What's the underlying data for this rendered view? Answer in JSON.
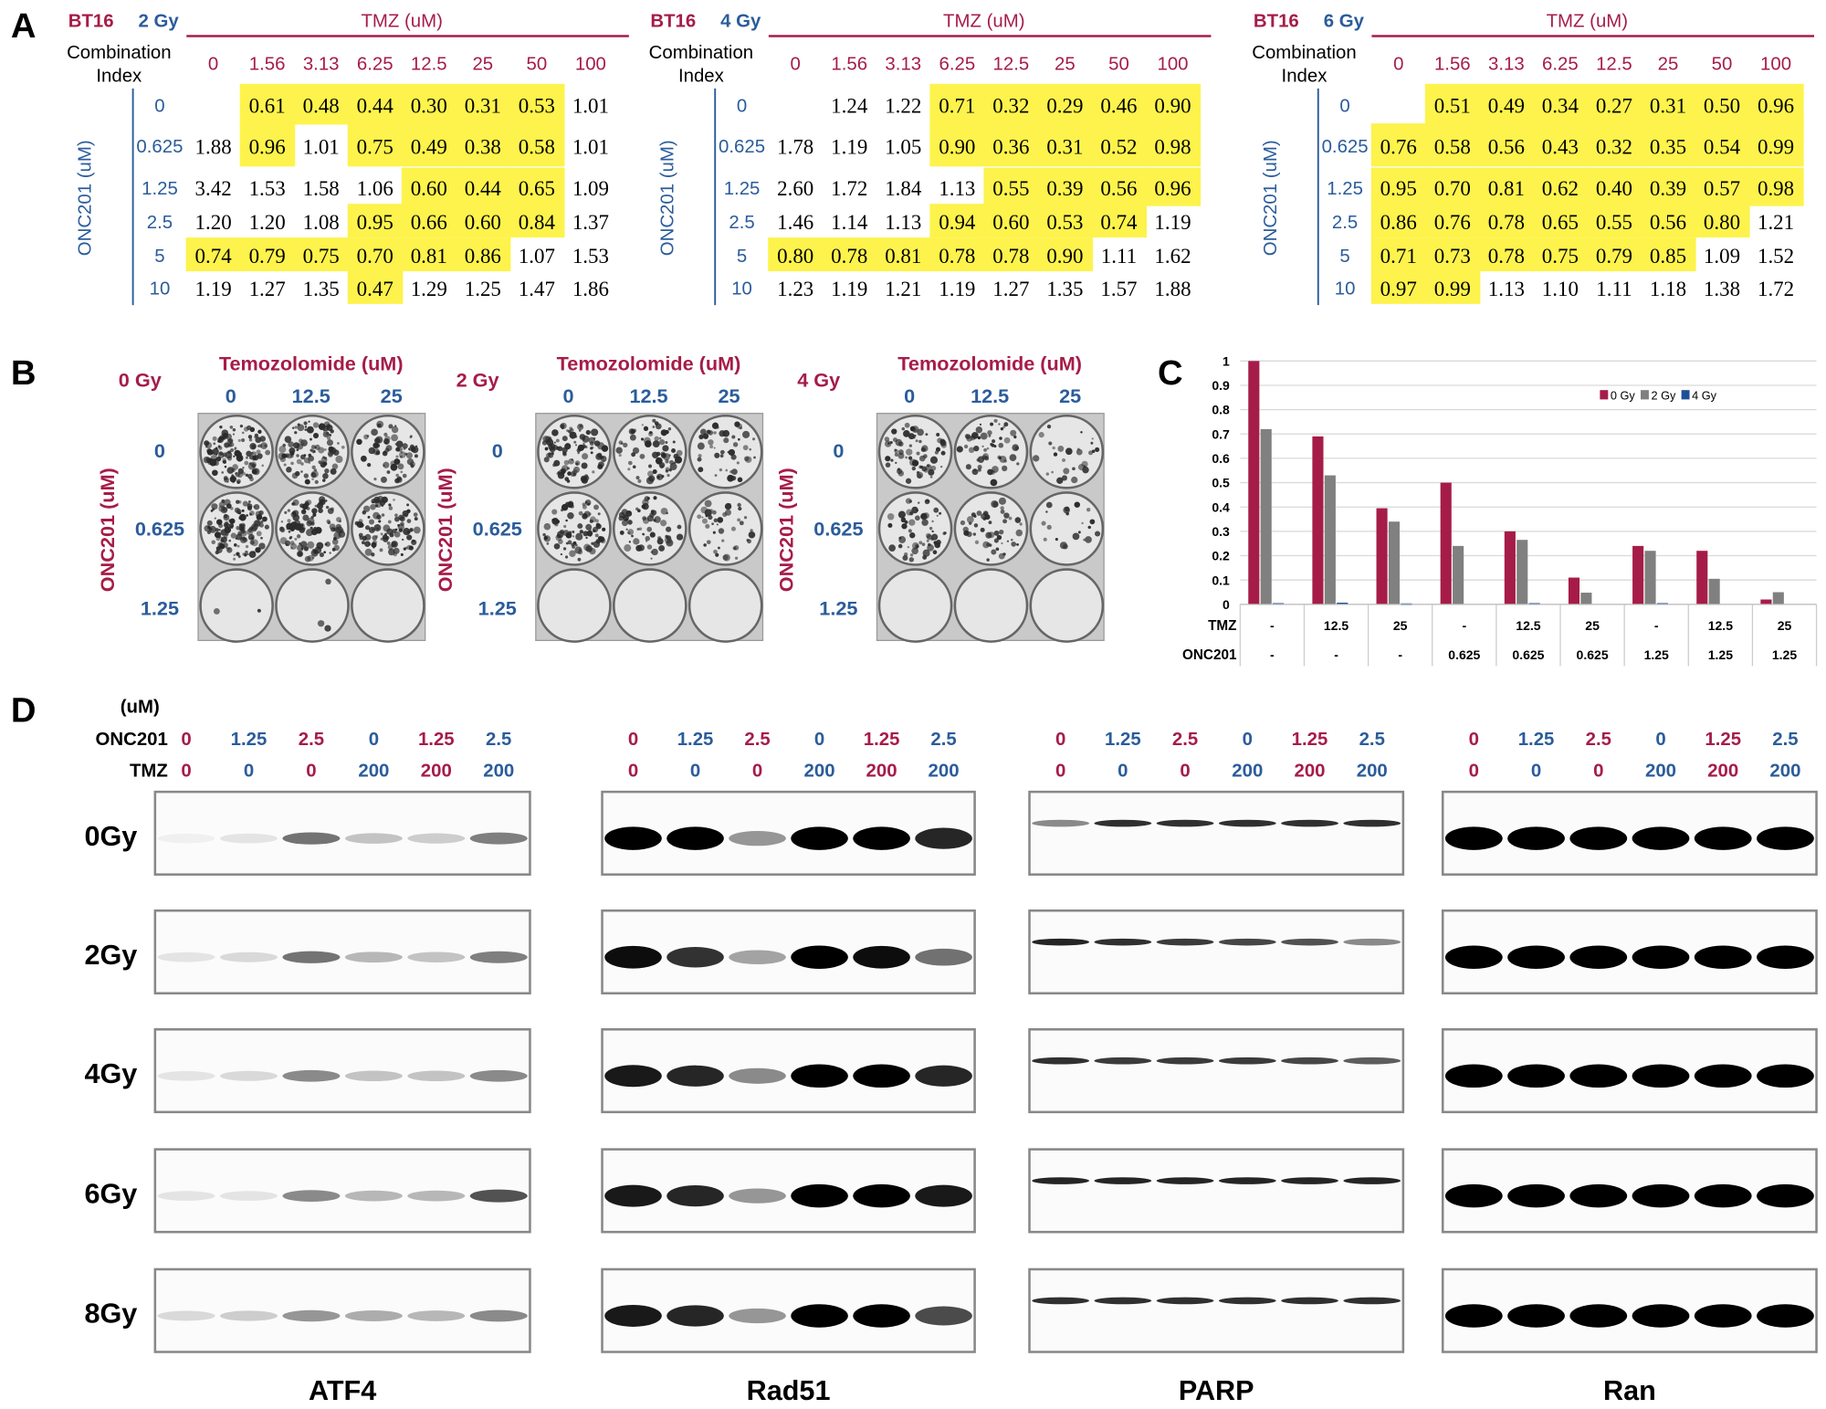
{
  "colors": {
    "crimson": "#a61c48",
    "blue": "#2b5c9b",
    "highlight": "#fdf34c",
    "gray": "#808080",
    "navy": "#1f4e99"
  },
  "panel_a": {
    "letter": "A",
    "tmz_label": "TMZ (uM)",
    "ci_label_1": "Combination",
    "ci_label_2": "Index",
    "onc_label": "ONC201 (uM)",
    "columns": [
      "0",
      "1.56",
      "3.13",
      "6.25",
      "12.5",
      "25",
      "50",
      "100"
    ],
    "row_labels": [
      "0",
      "0.625",
      "1.25",
      "2.5",
      "5",
      "10"
    ],
    "tables": [
      {
        "cell": "BT16",
        "dose": "2 Gy",
        "values": [
          [
            "",
            "0.61",
            "0.48",
            "0.44",
            "0.30",
            "0.31",
            "0.53",
            "1.01"
          ],
          [
            "1.88",
            "0.96",
            "1.01",
            "0.75",
            "0.49",
            "0.38",
            "0.58",
            "1.01"
          ],
          [
            "3.42",
            "1.53",
            "1.58",
            "1.06",
            "0.60",
            "0.44",
            "0.65",
            "1.09"
          ],
          [
            "1.20",
            "1.20",
            "1.08",
            "0.95",
            "0.66",
            "0.60",
            "0.84",
            "1.37"
          ],
          [
            "0.74",
            "0.79",
            "0.75",
            "0.70",
            "0.81",
            "0.86",
            "1.07",
            "1.53"
          ],
          [
            "1.19",
            "1.27",
            "1.35",
            "0.47",
            "1.29",
            "1.25",
            "1.47",
            "1.86"
          ]
        ],
        "highlighted": [
          [
            1,
            2,
            3,
            4,
            5,
            6
          ],
          [
            1,
            3,
            4,
            5,
            6
          ],
          [
            4,
            5,
            6
          ],
          [
            3,
            4,
            5,
            6
          ],
          [
            0,
            1,
            2,
            3,
            4,
            5
          ],
          [
            3
          ]
        ]
      },
      {
        "cell": "BT16",
        "dose": "4 Gy",
        "values": [
          [
            "",
            "1.24",
            "1.22",
            "0.71",
            "0.32",
            "0.29",
            "0.46",
            "0.90"
          ],
          [
            "1.78",
            "1.19",
            "1.05",
            "0.90",
            "0.36",
            "0.31",
            "0.52",
            "0.98"
          ],
          [
            "2.60",
            "1.72",
            "1.84",
            "1.13",
            "0.55",
            "0.39",
            "0.56",
            "0.96"
          ],
          [
            "1.46",
            "1.14",
            "1.13",
            "0.94",
            "0.60",
            "0.53",
            "0.74",
            "1.19"
          ],
          [
            "0.80",
            "0.78",
            "0.81",
            "0.78",
            "0.78",
            "0.90",
            "1.11",
            "1.62"
          ],
          [
            "1.23",
            "1.19",
            "1.21",
            "1.19",
            "1.27",
            "1.35",
            "1.57",
            "1.88"
          ]
        ],
        "highlighted": [
          [
            3,
            4,
            5,
            6,
            7
          ],
          [
            3,
            4,
            5,
            6,
            7
          ],
          [
            4,
            5,
            6,
            7
          ],
          [
            3,
            4,
            5,
            6
          ],
          [
            0,
            1,
            2,
            3,
            4,
            5
          ],
          []
        ]
      },
      {
        "cell": "BT16",
        "dose": "6 Gy",
        "values": [
          [
            "",
            "0.51",
            "0.49",
            "0.34",
            "0.27",
            "0.31",
            "0.50",
            "0.96"
          ],
          [
            "0.76",
            "0.58",
            "0.56",
            "0.43",
            "0.32",
            "0.35",
            "0.54",
            "0.99"
          ],
          [
            "0.95",
            "0.70",
            "0.81",
            "0.62",
            "0.40",
            "0.39",
            "0.57",
            "0.98"
          ],
          [
            "0.86",
            "0.76",
            "0.78",
            "0.65",
            "0.55",
            "0.56",
            "0.80",
            "1.21"
          ],
          [
            "0.71",
            "0.73",
            "0.78",
            "0.75",
            "0.79",
            "0.85",
            "1.09",
            "1.52"
          ],
          [
            "0.97",
            "0.99",
            "1.13",
            "1.10",
            "1.11",
            "1.18",
            "1.38",
            "1.72"
          ]
        ],
        "highlighted": [
          [
            1,
            2,
            3,
            4,
            5,
            6,
            7
          ],
          [
            0,
            1,
            2,
            3,
            4,
            5,
            6,
            7
          ],
          [
            0,
            1,
            2,
            3,
            4,
            5,
            6,
            7
          ],
          [
            0,
            1,
            2,
            3,
            4,
            5,
            6
          ],
          [
            0,
            1,
            2,
            3,
            4,
            5
          ],
          [
            0,
            1
          ]
        ]
      }
    ]
  },
  "panel_b": {
    "letter": "B",
    "tmz_label": "Temozolomide (uM)",
    "onc_label": "ONC201 (uM)",
    "columns": [
      "0",
      "12.5",
      "25"
    ],
    "rows": [
      "0",
      "0.625",
      "1.25"
    ],
    "plates": [
      {
        "dose": "0 Gy",
        "colony_density": [
          [
            0.9,
            0.7,
            0.5
          ],
          [
            0.9,
            0.8,
            0.7
          ],
          [
            0.02,
            0.02,
            0
          ]
        ]
      },
      {
        "dose": "2 Gy",
        "colony_density": [
          [
            0.7,
            0.5,
            0.35
          ],
          [
            0.6,
            0.45,
            0.3
          ],
          [
            0,
            0,
            0
          ]
        ]
      },
      {
        "dose": "4 Gy",
        "colony_density": [
          [
            0.5,
            0.4,
            0.2
          ],
          [
            0.45,
            0.35,
            0.15
          ],
          [
            0,
            0,
            0
          ]
        ]
      }
    ]
  },
  "chart_data": {
    "type": "bar",
    "letter": "C",
    "ylim": [
      0,
      1
    ],
    "yticks": [
      "0",
      "0.1",
      "0.2",
      "0.3",
      "0.4",
      "0.5",
      "0.6",
      "0.7",
      "0.8",
      "0.9",
      "1"
    ],
    "grid": true,
    "legend_placement": "top-right",
    "row_label_tmz": "TMZ",
    "row_label_onc": "ONC201",
    "tmz": [
      "-",
      "12.5",
      "25",
      "-",
      "12.5",
      "25",
      "-",
      "12.5",
      "25"
    ],
    "onc201": [
      "-",
      "-",
      "-",
      "0.625",
      "0.625",
      "0.625",
      "1.25",
      "1.25",
      "1.25"
    ],
    "series": [
      {
        "name": "0 Gy",
        "color": "#a61c48",
        "values": [
          1.0,
          0.69,
          0.395,
          0.5,
          0.3,
          0.11,
          0.24,
          0.22,
          0.02
        ]
      },
      {
        "name": "2 Gy",
        "color": "#808080",
        "values": [
          0.72,
          0.53,
          0.34,
          0.24,
          0.265,
          0.048,
          0.22,
          0.105,
          0.05
        ]
      },
      {
        "name": "4 Gy",
        "color": "#1f4e99",
        "values": [
          0.005,
          0.007,
          0.004,
          0,
          0.005,
          0,
          0.005,
          0,
          0
        ]
      }
    ]
  },
  "panel_d": {
    "letter": "D",
    "unit": "(uM)",
    "onc_label": "ONC201",
    "tmz_label": "TMZ",
    "onc_values": [
      "0",
      "1.25",
      "2.5",
      "0",
      "1.25",
      "2.5"
    ],
    "tmz_values": [
      "0",
      "0",
      "0",
      "200",
      "200",
      "200"
    ],
    "doses": [
      "0Gy",
      "2Gy",
      "4Gy",
      "6Gy",
      "8Gy"
    ],
    "blots": [
      {
        "protein": "ATF4",
        "band_intensity": [
          [
            0.05,
            0.1,
            0.6,
            0.25,
            0.2,
            0.55
          ],
          [
            0.1,
            0.15,
            0.6,
            0.3,
            0.25,
            0.55
          ],
          [
            0.1,
            0.15,
            0.5,
            0.25,
            0.25,
            0.5
          ],
          [
            0.1,
            0.1,
            0.5,
            0.3,
            0.3,
            0.75
          ],
          [
            0.15,
            0.2,
            0.45,
            0.35,
            0.3,
            0.5
          ]
        ]
      },
      {
        "protein": "Rad51",
        "band_intensity": [
          [
            1,
            1,
            0.4,
            1,
            1,
            0.85
          ],
          [
            0.95,
            0.8,
            0.35,
            1,
            0.95,
            0.55
          ],
          [
            0.9,
            0.85,
            0.45,
            1,
            1,
            0.85
          ],
          [
            0.9,
            0.85,
            0.4,
            1,
            1,
            0.9
          ],
          [
            0.9,
            0.85,
            0.4,
            1,
            1,
            0.7
          ]
        ]
      },
      {
        "protein": "PARP",
        "band_intensity": [
          [
            0.5,
            0.9,
            0.9,
            0.9,
            0.9,
            0.9
          ],
          [
            0.95,
            0.9,
            0.85,
            0.8,
            0.75,
            0.5
          ],
          [
            0.9,
            0.85,
            0.85,
            0.85,
            0.8,
            0.7
          ],
          [
            0.95,
            0.95,
            0.95,
            0.95,
            0.95,
            0.95
          ],
          [
            0.9,
            0.9,
            0.9,
            0.9,
            0.9,
            0.9
          ]
        ]
      },
      {
        "protein": "Ran",
        "band_intensity": [
          [
            1,
            1,
            1,
            1,
            1,
            1
          ],
          [
            1,
            1,
            1,
            1,
            1,
            1
          ],
          [
            1,
            1,
            1,
            1,
            1,
            1
          ],
          [
            1,
            1,
            1,
            1,
            1,
            1
          ],
          [
            1,
            1,
            1,
            1,
            1,
            1
          ]
        ]
      }
    ]
  }
}
